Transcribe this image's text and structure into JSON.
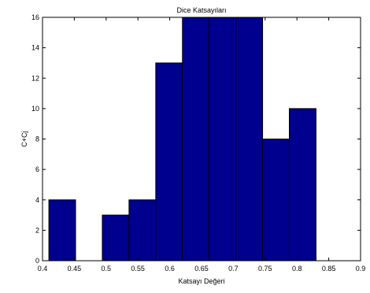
{
  "chart_data": {
    "type": "bar",
    "title": "Dice Katsayıları",
    "xlabel": "Katsayı Değeri",
    "ylabel": "C+Cj",
    "xlim": [
      0.4,
      0.9
    ],
    "ylim": [
      0,
      16
    ],
    "xticks": [
      "0.4",
      "0.45",
      "0.5",
      "0.55",
      "0.6",
      "0.65",
      "0.7",
      "0.75",
      "0.8",
      "0.85",
      "0.9"
    ],
    "yticks": [
      "0",
      "2",
      "4",
      "6",
      "8",
      "10",
      "12",
      "14",
      "16"
    ],
    "bins": [
      {
        "x0": 0.41,
        "x1": 0.452,
        "value": 4
      },
      {
        "x0": 0.452,
        "x1": 0.494,
        "value": 0
      },
      {
        "x0": 0.494,
        "x1": 0.536,
        "value": 3
      },
      {
        "x0": 0.536,
        "x1": 0.578,
        "value": 4
      },
      {
        "x0": 0.578,
        "x1": 0.62,
        "value": 13
      },
      {
        "x0": 0.62,
        "x1": 0.662,
        "value": 16
      },
      {
        "x0": 0.662,
        "x1": 0.704,
        "value": 16
      },
      {
        "x0": 0.704,
        "x1": 0.746,
        "value": 16
      },
      {
        "x0": 0.746,
        "x1": 0.788,
        "value": 8
      },
      {
        "x0": 0.788,
        "x1": 0.83,
        "value": 10
      }
    ],
    "bar_color": "#00008f",
    "edge_color": "#000000",
    "grid": false,
    "legend": "none"
  }
}
